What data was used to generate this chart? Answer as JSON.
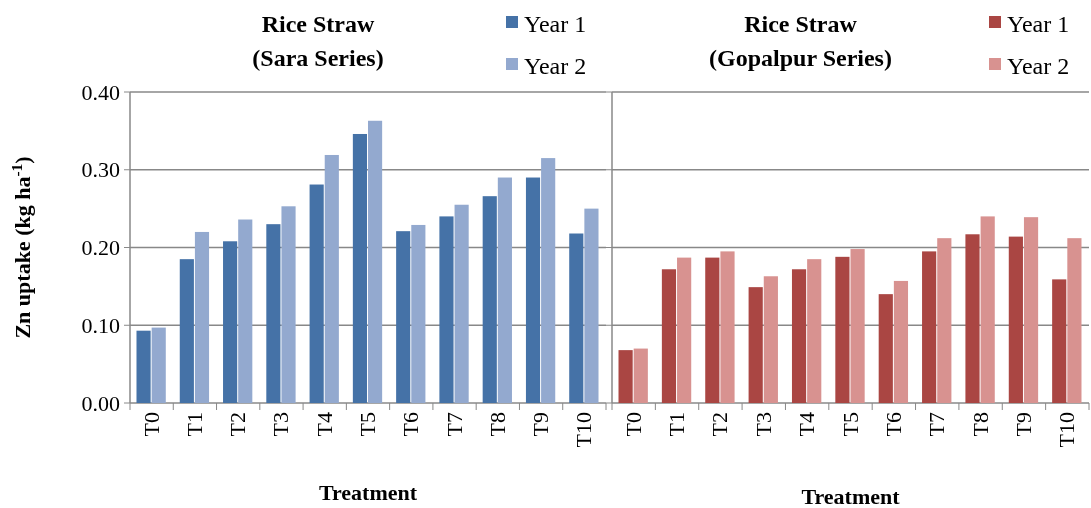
{
  "chart_data": [
    {
      "type": "bar",
      "title": "Rice Straw\n(Sara Series)",
      "xlabel": "Treatment",
      "ylabel": "Zn uptake (kg ha$^{-1}$)",
      "categories": [
        "T0",
        "T1",
        "T2",
        "T3",
        "T4",
        "T5",
        "T6",
        "T7",
        "T8",
        "T9",
        "T10"
      ],
      "series": [
        {
          "name": "Year 1",
          "color": "#4572a7",
          "values": [
            0.093,
            0.185,
            0.208,
            0.23,
            0.281,
            0.346,
            0.221,
            0.24,
            0.266,
            0.29,
            0.218
          ]
        },
        {
          "name": "Year 2",
          "color": "#93a9cf",
          "values": [
            0.097,
            0.22,
            0.236,
            0.253,
            0.319,
            0.363,
            0.229,
            0.255,
            0.29,
            0.315,
            0.25
          ]
        }
      ],
      "ylim": [
        0,
        0.4
      ],
      "yticks": [
        {
          "value": 0,
          "label": "0.00"
        },
        {
          "value": 0.1,
          "label": "0.10"
        },
        {
          "value": 0.2,
          "label": "0.20"
        },
        {
          "value": 0.3,
          "label": "0.30"
        },
        {
          "value": 0.4,
          "label": "0.40"
        }
      ],
      "grid": "y",
      "legend": "top right"
    },
    {
      "type": "bar",
      "title": "Rice Straw\n(Gopalpur Series)",
      "xlabel": "Treatment",
      "categories": [
        "T0",
        "T1",
        "T2",
        "T3",
        "T4",
        "T5",
        "T6",
        "T7",
        "T8",
        "T9",
        "T10"
      ],
      "series": [
        {
          "name": "Year 1",
          "color": "#aa4643",
          "values": [
            0.068,
            0.172,
            0.187,
            0.149,
            0.172,
            0.188,
            0.14,
            0.195,
            0.217,
            0.214,
            0.159
          ]
        },
        {
          "name": "Year 2",
          "color": "#d89290",
          "values": [
            0.07,
            0.187,
            0.195,
            0.163,
            0.185,
            0.198,
            0.157,
            0.212,
            0.24,
            0.239,
            0.212
          ]
        }
      ],
      "ylim": [
        0,
        0.4
      ],
      "yticks": [
        {
          "value": 0,
          "label": null
        },
        {
          "value": 0.1,
          "label": null
        },
        {
          "value": 0.2,
          "label": null
        },
        {
          "value": 0.3,
          "label": null
        },
        {
          "value": 0.4,
          "label": null
        }
      ],
      "grid": "y",
      "legend": "top right",
      "tick_labels": "x"
    }
  ]
}
